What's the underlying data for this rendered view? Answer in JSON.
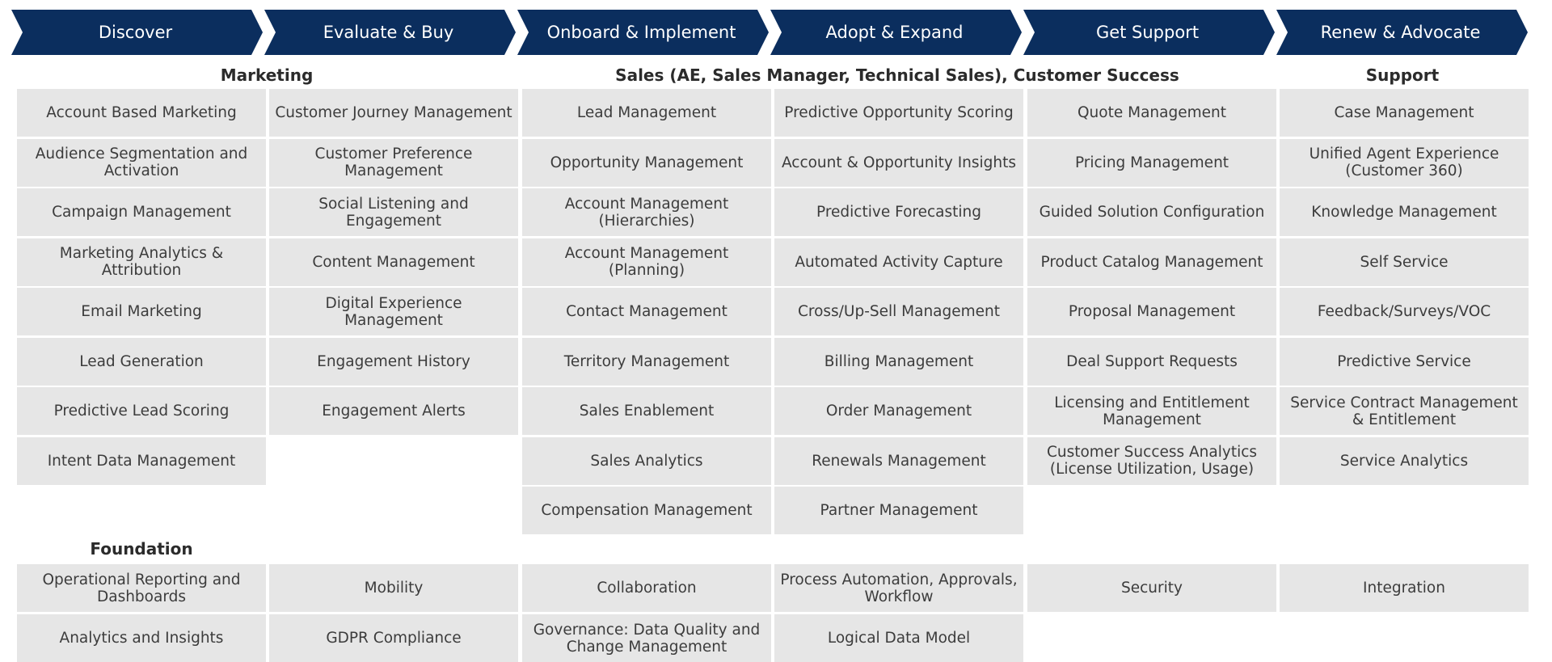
{
  "stages": [
    "Discover",
    "Evaluate & Buy",
    "Onboard & Implement",
    "Adopt & Expand",
    "Get Support",
    "Renew & Advocate"
  ],
  "colors": {
    "chevron": "#0b2e5e",
    "cell": "#e6e6e6",
    "text": "#3c3c3c"
  },
  "groups": {
    "marketing": "Marketing",
    "sales": "Sales (AE, Sales Manager, Technical Sales), Customer Success",
    "support": "Support",
    "foundation": "Foundation"
  },
  "columns": [
    [
      "Account Based Marketing",
      "Audience Segmentation and Activation",
      "Campaign Management",
      "Marketing Analytics & Attribution",
      "Email Marketing",
      "Lead Generation",
      "Predictive Lead Scoring",
      "Intent Data Management"
    ],
    [
      "Customer Journey Management",
      "Customer Preference Management",
      "Social Listening and Engagement",
      "Content Management",
      "Digital Experience Management",
      "Engagement History",
      "Engagement Alerts"
    ],
    [
      "Lead Management",
      "Opportunity Management",
      "Account Management (Hierarchies)",
      "Account Management (Planning)",
      "Contact Management",
      "Territory Management",
      "Sales Enablement",
      "Sales Analytics",
      "Compensation Management"
    ],
    [
      "Predictive Opportunity Scoring",
      "Account & Opportunity Insights",
      "Predictive Forecasting",
      "Automated Activity Capture",
      "Cross/Up-Sell Management",
      "Billing Management",
      "Order Management",
      "Renewals Management",
      "Partner Management"
    ],
    [
      "Quote Management",
      "Pricing Management",
      "Guided Solution Configuration",
      "Product Catalog Management",
      "Proposal Management",
      "Deal Support Requests",
      "Licensing and Entitlement Management",
      "Customer Success Analytics (License Utilization, Usage)"
    ],
    [
      "Case Management",
      "Unified Agent Experience (Customer 360)",
      "Knowledge Management",
      "Self Service",
      "Feedback/Surveys/VOC",
      "Predictive Service",
      "Service Contract Management & Entitlement",
      "Service Analytics"
    ]
  ],
  "foundation": [
    [
      "Operational Reporting and Dashboards",
      "Mobility",
      "Collaboration",
      "Process Automation, Approvals, Workflow",
      "Security",
      "Integration"
    ],
    [
      "Analytics and Insights",
      "GDPR Compliance",
      "Governance: Data Quality and Change Management",
      "Logical Data Model"
    ]
  ]
}
